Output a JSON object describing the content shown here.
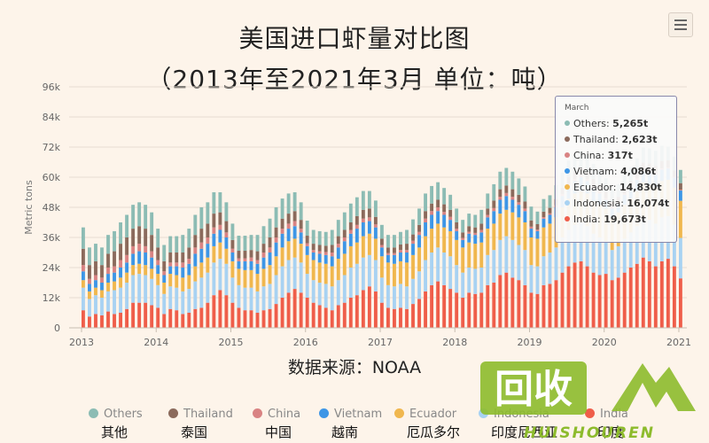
{
  "title_line1": "美国进口虾量对比图",
  "title_line2": "（2013年至2021年3月 单位：吨）",
  "source": "数据来源：NOAA",
  "colors": {
    "Others": "#8cbcb4",
    "Thailand": "#8b6a5c",
    "China": "#d98383",
    "Vietnam": "#3d96e6",
    "Ecuador": "#f0b74e",
    "Indonesia": "#a8d2f2",
    "India": "#ef5e4a"
  },
  "legend": [
    {
      "en": "Others",
      "cn": "其他"
    },
    {
      "en": "Thailand",
      "cn": "泰国"
    },
    {
      "en": "China",
      "cn": "中国"
    },
    {
      "en": "Vietnam",
      "cn": "越南"
    },
    {
      "en": "Ecuador",
      "cn": "厄瓜多尔"
    },
    {
      "en": "Indonesia",
      "cn": "印度尼西亚"
    },
    {
      "en": "India",
      "cn": "印度"
    }
  ],
  "tooltip": {
    "title": "March",
    "rows": [
      {
        "series": "Others",
        "label": "Others: ",
        "value": "5,265t"
      },
      {
        "series": "Thailand",
        "label": "Thailand: ",
        "value": "2,623t"
      },
      {
        "series": "China",
        "label": "China: ",
        "value": "317t"
      },
      {
        "series": "Vietnam",
        "label": "Vietnam: ",
        "value": "4,086t"
      },
      {
        "series": "Ecuador",
        "label": "Ecuador: ",
        "value": "14,830t"
      },
      {
        "series": "Indonesia",
        "label": "Indonesia: ",
        "value": "16,074t"
      },
      {
        "series": "India",
        "label": "India: ",
        "value": "19,673t"
      }
    ]
  },
  "watermark": {
    "main": "回收",
    "sub": "HUISHOUREN"
  },
  "chart_data": {
    "type": "bar",
    "stacked": true,
    "ylabel": "Metric tons",
    "ylim": [
      0,
      96000
    ],
    "yticks": [
      "0",
      "12k",
      "24k",
      "36k",
      "48k",
      "60k",
      "72k",
      "84k",
      "96k"
    ],
    "ytick_values": [
      0,
      12000,
      24000,
      36000,
      48000,
      60000,
      72000,
      84000,
      96000
    ],
    "xticks": [
      "2013",
      "2014",
      "2015",
      "2016",
      "2017",
      "2018",
      "2019",
      "2020",
      "2021"
    ],
    "xtick_indices": [
      0,
      12,
      24,
      36,
      48,
      60,
      72,
      84,
      96
    ],
    "grid": true,
    "legend_position": "bottom",
    "series_order": [
      "India",
      "Indonesia",
      "Ecuador",
      "Vietnam",
      "China",
      "Thailand",
      "Others"
    ],
    "series": [
      {
        "name": "India",
        "values": [
          7000,
          4500,
          5500,
          5000,
          6500,
          5500,
          6000,
          7500,
          10000,
          10000,
          10000,
          9000,
          8000,
          5500,
          7500,
          7000,
          5500,
          6000,
          7500,
          8000,
          10000,
          13000,
          15000,
          13000,
          10000,
          8000,
          7000,
          7000,
          6000,
          7000,
          7500,
          9500,
          12000,
          14000,
          15500,
          14000,
          12000,
          10000,
          9000,
          8000,
          7000,
          9000,
          10000,
          12000,
          13000,
          15000,
          16500,
          14500,
          10000,
          8000,
          7500,
          8000,
          7500,
          9500,
          11500,
          14500,
          17000,
          18500,
          17000,
          15500,
          14000,
          12000,
          14000,
          13500,
          14000,
          17000,
          18000,
          21000,
          22000,
          20000,
          19000,
          17000,
          14000,
          13500,
          17000,
          17500,
          19000,
          22000,
          24500,
          26000,
          26500,
          24500,
          22000,
          21000,
          21500,
          19000,
          20000,
          22000,
          24000,
          25500,
          28000,
          26500,
          24500,
          26500,
          27500,
          24500,
          19700
        ]
      },
      {
        "name": "Indonesia",
        "values": [
          9000,
          7000,
          7500,
          7000,
          8000,
          9500,
          10000,
          10500,
          11000,
          11500,
          11000,
          10500,
          9000,
          8000,
          9000,
          9000,
          9000,
          9500,
          11000,
          12000,
          12000,
          13000,
          12500,
          12500,
          10000,
          9000,
          9000,
          9000,
          8500,
          9500,
          10000,
          11500,
          12500,
          13000,
          12500,
          12000,
          9500,
          9000,
          9000,
          9500,
          9500,
          10000,
          11000,
          12000,
          12500,
          13000,
          12500,
          12500,
          10000,
          9000,
          9000,
          9500,
          9000,
          10000,
          11000,
          12500,
          13000,
          13500,
          13000,
          13000,
          11000,
          10000,
          10000,
          10000,
          10000,
          12000,
          13000,
          14000,
          14500,
          15000,
          14000,
          14000,
          11000,
          11000,
          11500,
          12500,
          13000,
          14000,
          14500,
          15000,
          15500,
          16000,
          15500,
          15000,
          13000,
          12000,
          12500,
          13500,
          14000,
          15000,
          16000,
          16500,
          17000,
          17500,
          17000,
          16500,
          16100
        ]
      },
      {
        "name": "Ecuador",
        "values": [
          3000,
          3000,
          3000,
          3000,
          3500,
          3500,
          4000,
          4000,
          4000,
          4000,
          4000,
          4000,
          4500,
          4500,
          5000,
          5000,
          5500,
          5500,
          6000,
          6000,
          6000,
          6500,
          6500,
          6000,
          6500,
          6500,
          7000,
          7000,
          7000,
          7000,
          7500,
          7500,
          7500,
          7500,
          7500,
          7500,
          7500,
          8000,
          8000,
          8000,
          8000,
          8500,
          8500,
          8500,
          8500,
          8500,
          8500,
          8500,
          8500,
          9000,
          9000,
          9000,
          9500,
          9500,
          9500,
          9500,
          9500,
          9500,
          10000,
          10000,
          10000,
          10000,
          10000,
          10000,
          10000,
          10500,
          10500,
          10500,
          10500,
          11000,
          11000,
          11000,
          11000,
          11000,
          11500,
          11500,
          12000,
          12000,
          12500,
          12500,
          12500,
          13000,
          13000,
          13000,
          13000,
          13000,
          13500,
          13500,
          13500,
          14000,
          14000,
          14000,
          14500,
          14500,
          14500,
          14800,
          14800
        ]
      },
      {
        "name": "Vietnam",
        "values": [
          3500,
          3000,
          3000,
          3000,
          3500,
          3500,
          4000,
          4000,
          4500,
          5000,
          5000,
          4500,
          3500,
          3000,
          3000,
          3500,
          4000,
          4500,
          5000,
          5500,
          5500,
          5000,
          5000,
          4500,
          3500,
          3000,
          3500,
          3500,
          4000,
          4500,
          5000,
          5500,
          5500,
          5000,
          5000,
          4500,
          3500,
          3000,
          3500,
          3500,
          4000,
          4500,
          5000,
          5000,
          5500,
          5500,
          5000,
          4500,
          3500,
          3000,
          3500,
          3500,
          4000,
          4500,
          5000,
          5500,
          5500,
          5000,
          5000,
          4500,
          3500,
          3000,
          3500,
          3500,
          4000,
          4500,
          5000,
          5500,
          5500,
          5000,
          5000,
          4500,
          3500,
          3000,
          3500,
          3500,
          4000,
          4500,
          5000,
          5000,
          5500,
          5000,
          5000,
          4500,
          3500,
          3500,
          3500,
          4000,
          4000,
          4500,
          4500,
          5000,
          5000,
          4500,
          4500,
          4000,
          4100
        ]
      },
      {
        "name": "China",
        "values": [
          2500,
          2000,
          2000,
          2000,
          2500,
          2500,
          3000,
          3000,
          3000,
          3000,
          2500,
          2500,
          2000,
          1500,
          1500,
          1500,
          2000,
          2000,
          2500,
          2500,
          2500,
          2500,
          2000,
          2000,
          1500,
          1200,
          1200,
          1500,
          1500,
          2000,
          2000,
          2000,
          2000,
          2000,
          2000,
          1500,
          1200,
          1000,
          1000,
          1200,
          1500,
          1500,
          1500,
          1500,
          1500,
          1500,
          1500,
          1200,
          1000,
          800,
          800,
          1000,
          1000,
          1200,
          1200,
          1500,
          1500,
          1500,
          1200,
          1200,
          1000,
          800,
          800,
          800,
          1000,
          1000,
          1200,
          1200,
          1200,
          1200,
          1000,
          1000,
          800,
          600,
          600,
          600,
          800,
          800,
          800,
          800,
          800,
          800,
          800,
          700,
          600,
          500,
          500,
          500,
          500,
          500,
          500,
          500,
          500,
          500,
          400,
          300,
          317
        ]
      },
      {
        "name": "Thailand",
        "values": [
          6500,
          5500,
          5500,
          5000,
          5500,
          6000,
          6500,
          7000,
          7000,
          7000,
          7000,
          6500,
          5000,
          4000,
          4000,
          4000,
          4000,
          4500,
          5000,
          5500,
          5500,
          5500,
          5000,
          4500,
          3500,
          3000,
          3000,
          3000,
          3500,
          3500,
          4000,
          4000,
          4000,
          4000,
          4000,
          3500,
          3000,
          2500,
          2500,
          2500,
          3000,
          3000,
          3000,
          3000,
          3500,
          3500,
          3500,
          3000,
          2500,
          2200,
          2200,
          2200,
          2500,
          2500,
          2800,
          3000,
          3000,
          3000,
          3000,
          2800,
          2500,
          2200,
          2200,
          2200,
          2500,
          2500,
          3000,
          3000,
          3000,
          3000,
          3000,
          2800,
          2500,
          2200,
          2200,
          2200,
          2500,
          2500,
          2800,
          3000,
          3000,
          3000,
          3000,
          2800,
          2500,
          2200,
          2200,
          2200,
          2500,
          2500,
          2800,
          3000,
          3000,
          3000,
          2800,
          2600,
          2623
        ]
      },
      {
        "name": "Others",
        "values": [
          8500,
          7000,
          7000,
          7000,
          7500,
          8000,
          8500,
          9000,
          9500,
          9500,
          9500,
          9000,
          7500,
          6500,
          6500,
          6500,
          7000,
          7500,
          8000,
          8500,
          8500,
          8500,
          8000,
          7500,
          6500,
          6000,
          6000,
          6000,
          6500,
          7000,
          7500,
          8000,
          8000,
          8000,
          7500,
          7000,
          6000,
          5500,
          5500,
          5500,
          6000,
          6500,
          7000,
          7500,
          7500,
          7500,
          7000,
          6500,
          5500,
          5000,
          5000,
          5000,
          5500,
          6000,
          6500,
          7000,
          7000,
          7000,
          6500,
          6000,
          5500,
          5000,
          5000,
          5000,
          5500,
          6000,
          6500,
          7000,
          7000,
          7000,
          6500,
          6000,
          5500,
          5000,
          5000,
          5000,
          5500,
          6000,
          6500,
          6500,
          6500,
          6500,
          6000,
          6000,
          5500,
          5000,
          5000,
          5000,
          5500,
          5500,
          6000,
          6000,
          6000,
          6000,
          5500,
          5500,
          5265
        ]
      }
    ]
  }
}
